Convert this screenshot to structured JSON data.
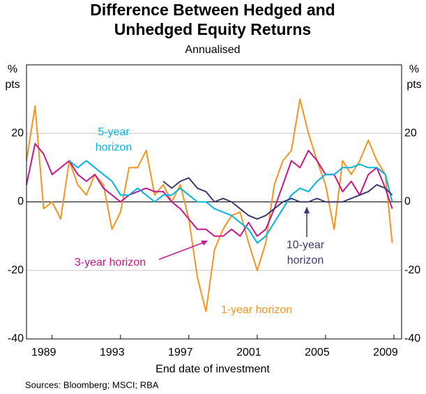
{
  "chart_data": {
    "type": "line",
    "title": [
      "Difference Between Hedged and",
      "Unhedged Equity Returns"
    ],
    "subtitle": "Annualised",
    "ylabel": [
      "%",
      "pts"
    ],
    "y2label": [
      "%",
      "pts"
    ],
    "xlabel": "End date of investment",
    "source": "Sources: Bloomberg; MSCI; RBA",
    "xlim": [
      1987.5,
      2009.45
    ],
    "xticks": [
      1989,
      1993,
      1997,
      2001,
      2005,
      2009
    ],
    "ylim": [
      -40,
      40
    ],
    "yticks": [
      -40,
      -20,
      0,
      20
    ],
    "y2lim": [
      -40,
      40
    ],
    "y2ticks": [
      -40,
      -20,
      0,
      20
    ],
    "grid": true,
    "x": [
      1987.5,
      1988,
      1988.5,
      1989,
      1989.5,
      1990,
      1990.5,
      1991,
      1991.5,
      1992,
      1992.5,
      1993,
      1993.5,
      1994,
      1994.5,
      1995,
      1995.5,
      1996,
      1996.5,
      1997,
      1997.5,
      1998,
      1998.5,
      1999,
      1999.5,
      2000,
      2000.5,
      2001,
      2001.5,
      2002,
      2002.5,
      2003,
      2003.5,
      2004,
      2004.5,
      2005,
      2005.5,
      2006,
      2006.5,
      2007,
      2007.5,
      2008,
      2008.5,
      2008.9
    ],
    "series": [
      {
        "name": "1-year horizon",
        "color": "#f7941d",
        "values": [
          12,
          28,
          -2,
          0,
          -5,
          12,
          5,
          2,
          8,
          5,
          -8,
          -3,
          10,
          10,
          15,
          2,
          5,
          0,
          5,
          -5,
          -22,
          -32,
          -14,
          -8,
          -4,
          -3,
          -12,
          -20,
          -12,
          5,
          12,
          15,
          30,
          20,
          12,
          5,
          -8,
          12,
          8,
          12,
          18,
          12,
          8,
          -12
        ]
      },
      {
        "name": "3-year horizon",
        "color": "#c8178a",
        "values": [
          5,
          17,
          14,
          8,
          10,
          12,
          8,
          6,
          8,
          4,
          2,
          0,
          2,
          3,
          4,
          3,
          3,
          0,
          -2,
          -5,
          -8,
          -8,
          -10,
          -10,
          -8,
          -10,
          -6,
          -10,
          -8,
          -2,
          5,
          12,
          10,
          15,
          12,
          8,
          8,
          3,
          6,
          2,
          8,
          10,
          4,
          -2
        ]
      },
      {
        "name": "5-year horizon",
        "color": "#00b5e2",
        "values": [
          null,
          null,
          null,
          null,
          null,
          12,
          10,
          12,
          10,
          8,
          6,
          2,
          2,
          4,
          2,
          0,
          2,
          2,
          4,
          2,
          0,
          0,
          -2,
          -3,
          -4,
          -6,
          -8,
          -12,
          -10,
          -6,
          -2,
          2,
          4,
          3,
          6,
          8,
          8,
          10,
          10,
          11,
          10,
          10,
          8,
          0
        ]
      },
      {
        "name": "10-year horizon",
        "color": "#3a3a6e",
        "values": [
          null,
          null,
          null,
          null,
          null,
          null,
          null,
          null,
          null,
          null,
          null,
          null,
          null,
          null,
          null,
          null,
          6,
          4,
          6,
          7,
          4,
          3,
          0,
          1,
          0,
          -2,
          -4,
          -5,
          -4,
          -2,
          0,
          1,
          0,
          0,
          1,
          0,
          0,
          0,
          1,
          2,
          3,
          5,
          4,
          2
        ]
      }
    ]
  }
}
